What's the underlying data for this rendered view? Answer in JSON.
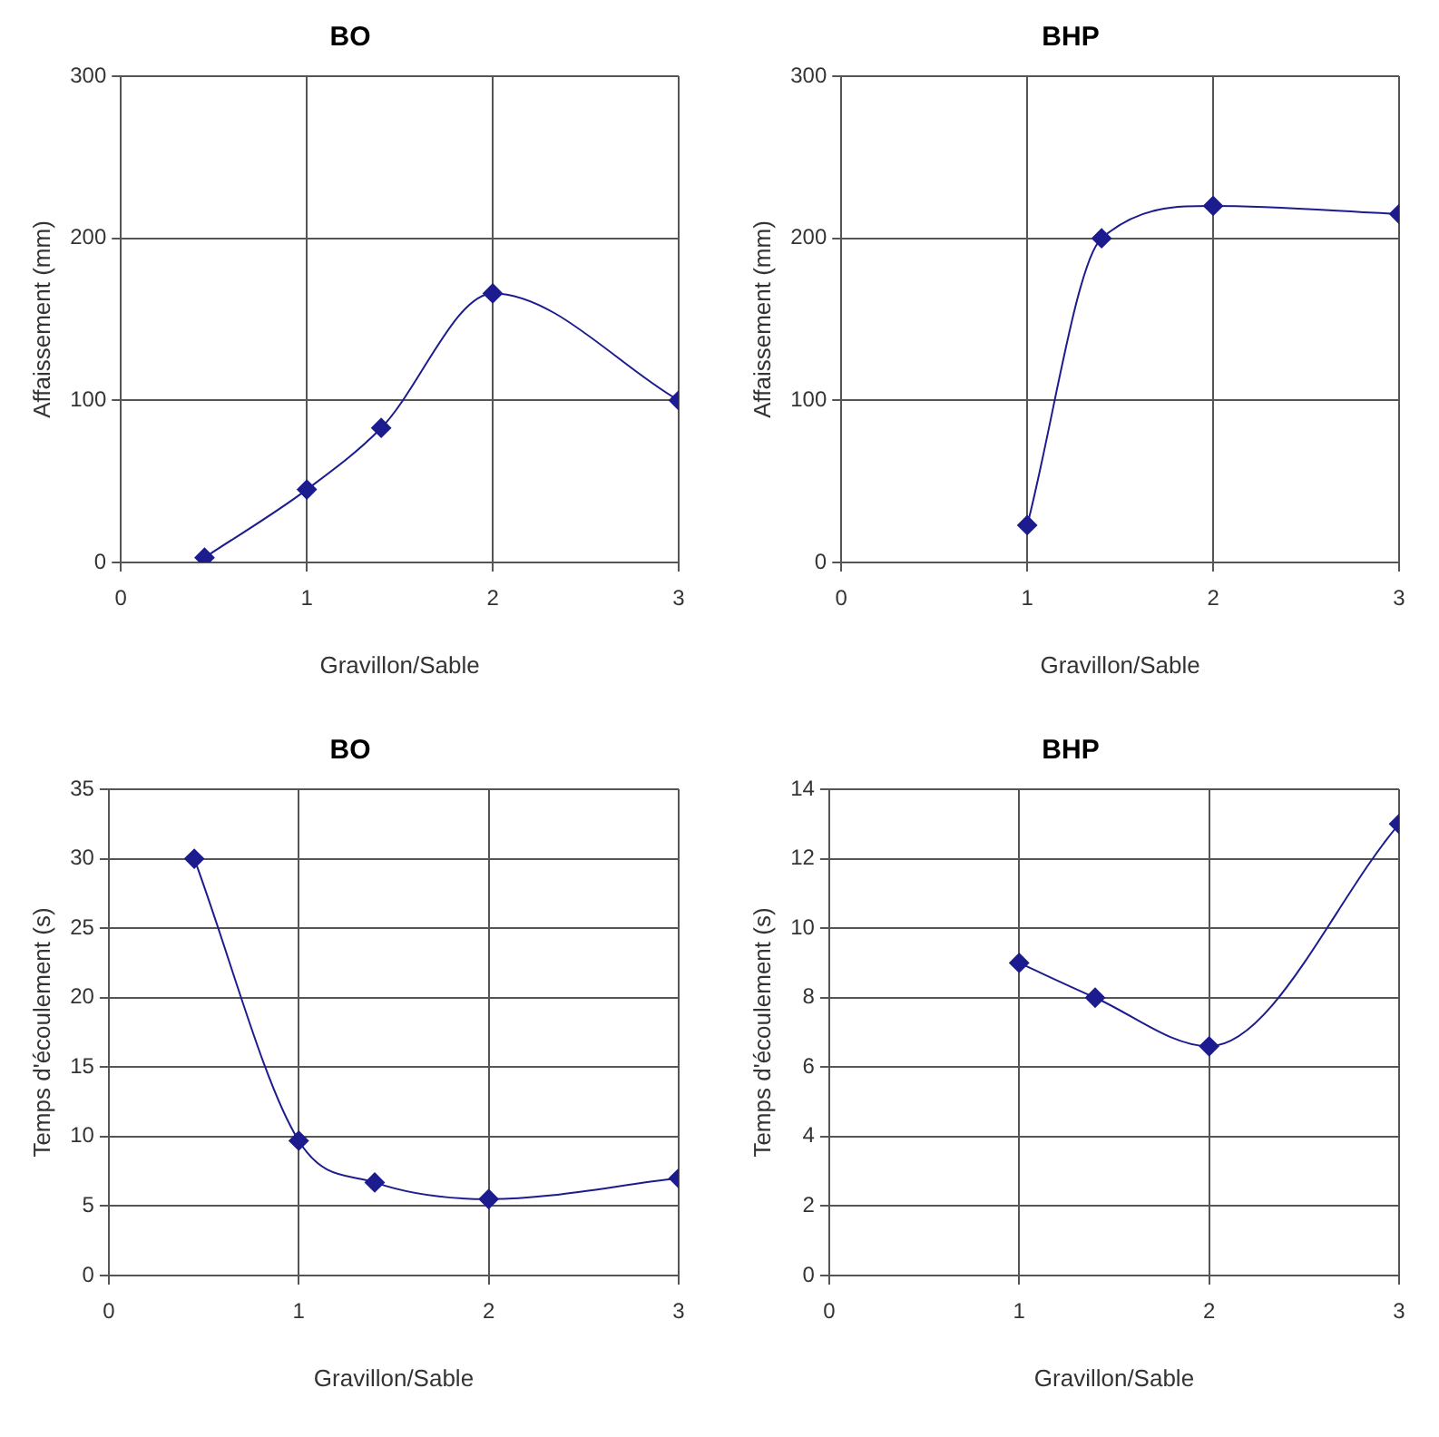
{
  "chart_data": [
    {
      "type": "line",
      "title": "BO",
      "xlabel": "Gravillon/Sable",
      "ylabel": "Affaissement (mm)",
      "x": [
        0.45,
        1,
        1.4,
        2,
        3
      ],
      "values": [
        3,
        45,
        83,
        166,
        100
      ],
      "color": "#1c1c8f",
      "xlim": [
        0,
        3
      ],
      "xticks": [
        0,
        1,
        2,
        3
      ],
      "ylim": [
        0,
        300
      ],
      "yticks": [
        0,
        100,
        200,
        300
      ],
      "grid": true,
      "legend": false,
      "marker": "diamond"
    },
    {
      "type": "line",
      "title": "BHP",
      "xlabel": "Gravillon/Sable",
      "ylabel": "Affaissement (mm)",
      "x": [
        1,
        1.4,
        2,
        3
      ],
      "values": [
        23,
        200,
        220,
        215
      ],
      "color": "#1c1c8f",
      "xlim": [
        0,
        3
      ],
      "xticks": [
        0,
        1,
        2,
        3
      ],
      "ylim": [
        0,
        300
      ],
      "yticks": [
        0,
        100,
        200,
        300
      ],
      "grid": true,
      "legend": false,
      "marker": "diamond"
    },
    {
      "type": "line",
      "title": "BO",
      "xlabel": "Gravillon/Sable",
      "ylabel": "Temps d'écoulement (s)",
      "x": [
        0.45,
        1,
        1.4,
        2,
        3
      ],
      "values": [
        30,
        9.7,
        6.7,
        5.5,
        7
      ],
      "color": "#1c1c8f",
      "xlim": [
        0,
        3
      ],
      "xticks": [
        0,
        1,
        2,
        3
      ],
      "ylim": [
        0,
        35
      ],
      "yticks": [
        0,
        5,
        10,
        15,
        20,
        25,
        30,
        35
      ],
      "grid": true,
      "legend": false,
      "marker": "diamond"
    },
    {
      "type": "line",
      "title": "BHP",
      "xlabel": "Gravillon/Sable",
      "ylabel": "Temps d'écoulement (s)",
      "x": [
        1,
        1.4,
        2,
        3
      ],
      "values": [
        9,
        8,
        6.6,
        13
      ],
      "color": "#1c1c8f",
      "xlim": [
        0,
        3
      ],
      "xticks": [
        0,
        1,
        2,
        3
      ],
      "ylim": [
        0,
        14
      ],
      "yticks": [
        0,
        2,
        4,
        6,
        8,
        10,
        12,
        14
      ],
      "grid": true,
      "legend": false,
      "marker": "diamond"
    }
  ]
}
